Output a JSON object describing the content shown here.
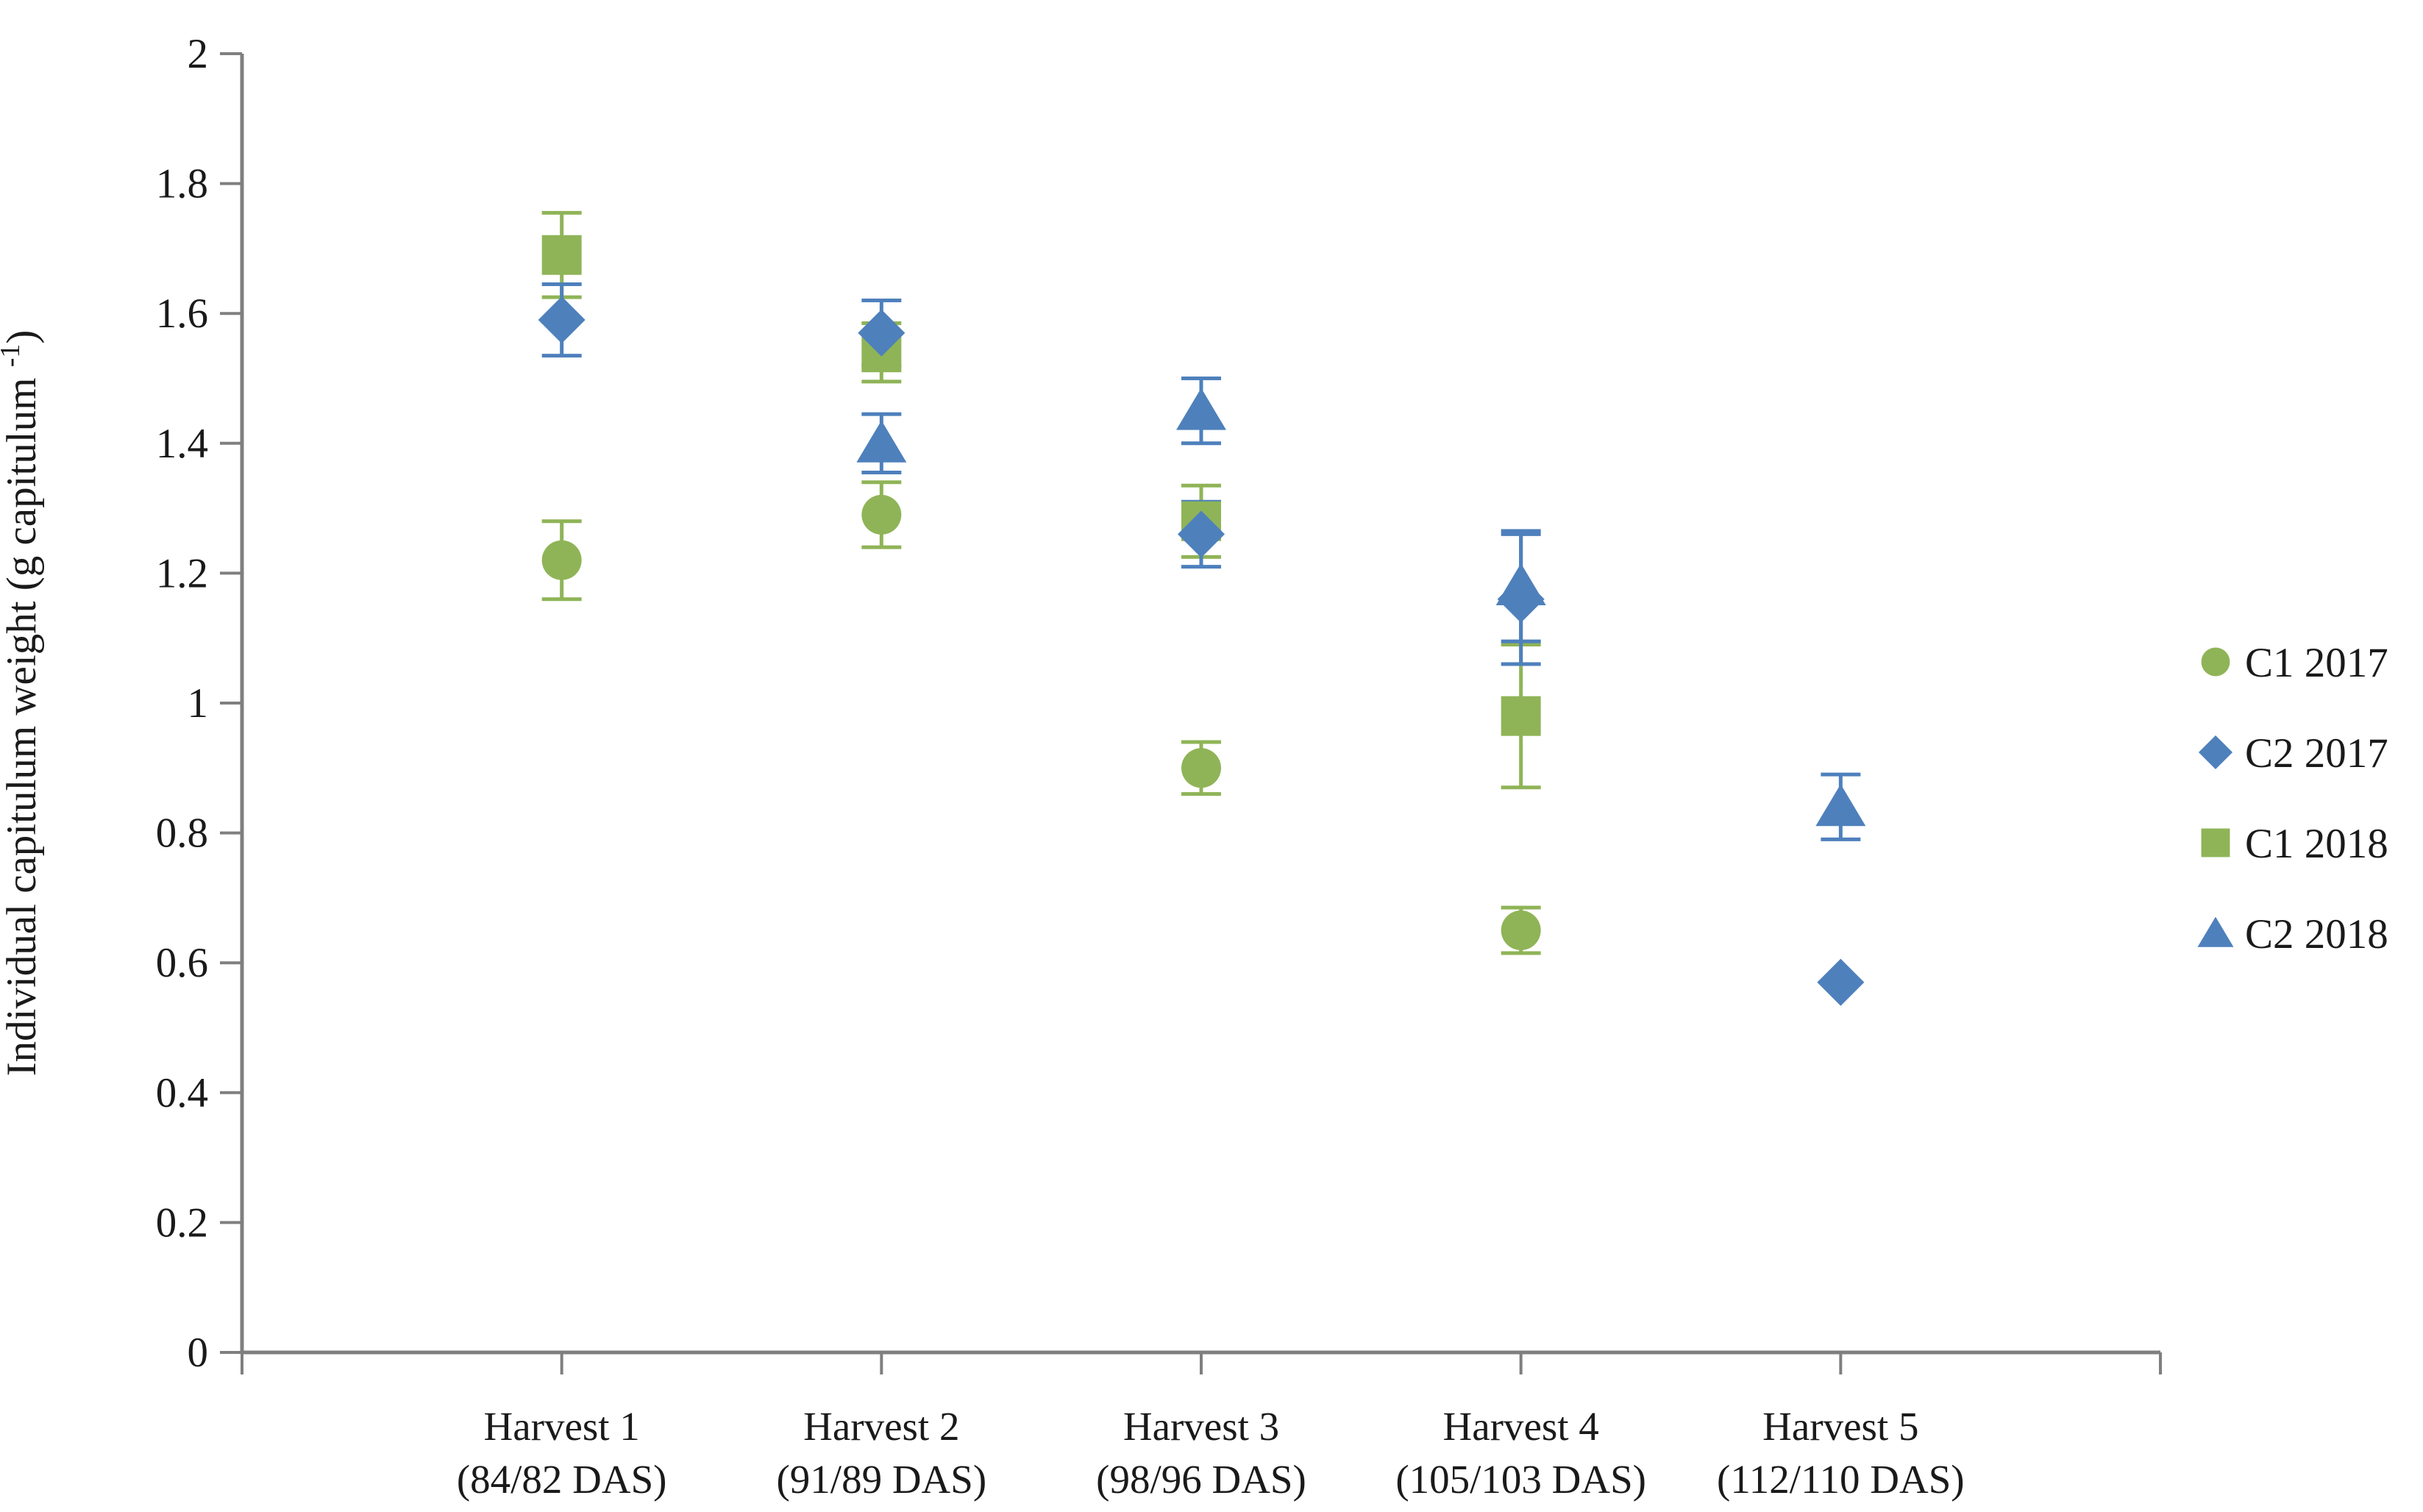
{
  "chart_data": {
    "type": "scatter",
    "title": "",
    "ylabel_main": "Individual capitulum weight (g capitulum",
    "ylabel_sup": "-1",
    "ylabel_close": ")",
    "ylim": [
      0,
      2
    ],
    "ytick_step": 0.2,
    "ytick_labels": [
      "0",
      "0.2",
      "0.4",
      "0.6",
      "0.8",
      "1",
      "1.2",
      "1.4",
      "1.6",
      "1.8",
      "2"
    ],
    "xlim": [
      0,
      6
    ],
    "x_positions": [
      1,
      2,
      3,
      4,
      5
    ],
    "categories": [
      {
        "line1": "Harvest 1",
        "line2": "(84/82 DAS)"
      },
      {
        "line1": "Harvest 2",
        "line2": "(91/89 DAS)"
      },
      {
        "line1": "Harvest 3",
        "line2": "(98/96 DAS)"
      },
      {
        "line1": "Harvest 4",
        "line2": "(105/103 DAS)"
      },
      {
        "line1": "Harvest 5",
        "line2": "(112/110 DAS)"
      }
    ],
    "series": [
      {
        "name": "C1 2017",
        "marker": "circle",
        "color": "#8FB457",
        "values": [
          1.22,
          1.29,
          0.9,
          0.65,
          null
        ],
        "errors": [
          0.06,
          0.05,
          0.04,
          0.035,
          null
        ]
      },
      {
        "name": "C2 2017",
        "marker": "diamond",
        "color": "#4E80BC",
        "values": [
          1.59,
          1.57,
          1.26,
          1.16,
          0.57
        ],
        "errors": [
          0.055,
          0.05,
          0.05,
          0.1,
          null
        ]
      },
      {
        "name": "C1 2018",
        "marker": "square",
        "color": "#8FB457",
        "values": [
          1.69,
          1.54,
          1.28,
          0.98,
          null
        ],
        "errors": [
          0.065,
          0.045,
          0.055,
          0.11,
          null
        ]
      },
      {
        "name": "C2 2018",
        "marker": "triangle",
        "color": "#4E80BC",
        "values": [
          null,
          1.4,
          1.45,
          1.18,
          0.84
        ],
        "errors": [
          null,
          0.045,
          0.05,
          0.085,
          0.05
        ]
      }
    ],
    "legend": {
      "position": "right",
      "labels": [
        "C1 2017",
        "C2 2017",
        "C1 2018",
        "C2 2018"
      ]
    },
    "grid": false,
    "axis_color": "#7F7F7F",
    "text_color": "#1A1A1A",
    "draw_order": [
      0,
      2,
      3,
      1
    ]
  }
}
